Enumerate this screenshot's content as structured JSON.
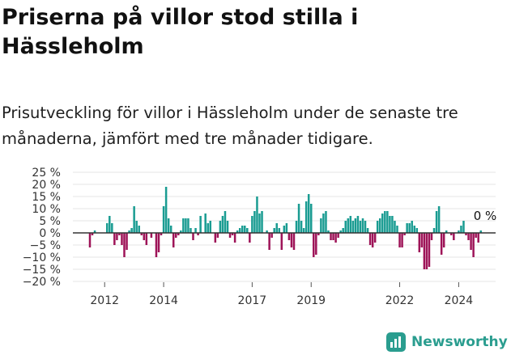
{
  "title": "Priserna på villor stod stilla i Hässleholm",
  "subtitle": "Prisutveckling för villor i Hässleholm under de senaste tre månaderna, jämfört med tre månader tidigare.",
  "brand": {
    "name": "Newsworthy",
    "logo_icon": "newsworthy-logo-icon"
  },
  "colors": {
    "positive": "#1a9c92",
    "negative": "#9e1458",
    "grid": "#e4e4e4",
    "zero": "#333333"
  },
  "chart_data": {
    "type": "bar",
    "ylim": [
      -20,
      25
    ],
    "yticks": [
      25,
      20,
      15,
      10,
      5,
      0,
      -5,
      -10,
      -15,
      -20
    ],
    "ytick_labels": [
      "25 %",
      "20 %",
      "15 %",
      "10 %",
      "5 %",
      "0 %",
      "−5 %",
      "−10 %",
      "−15 %",
      "−20 %"
    ],
    "xtick_labels": [
      {
        "label": "2012",
        "index": 6
      },
      {
        "label": "2014",
        "index": 30
      },
      {
        "label": "2017",
        "index": 66
      },
      {
        "label": "2019",
        "index": 90
      },
      {
        "label": "2022",
        "index": 126
      },
      {
        "label": "2024",
        "index": 150
      }
    ],
    "annotation": "0 %",
    "values": [
      -6,
      -1,
      1,
      0,
      0,
      0,
      0,
      4,
      7,
      4,
      -5,
      -3,
      -1,
      -5,
      -10,
      -7,
      1,
      2,
      11,
      5,
      3,
      -1,
      -3,
      -5,
      0,
      -2,
      0,
      -10,
      -8,
      -1,
      11,
      19,
      6,
      3,
      -6,
      -2,
      -1,
      1,
      6,
      6,
      6,
      2,
      -3,
      2,
      -1,
      7,
      0,
      8,
      4,
      5,
      0,
      -4,
      -2,
      5,
      7,
      9,
      5,
      -2,
      -1,
      -4,
      1,
      2,
      3,
      3,
      2,
      -4,
      7,
      9,
      15,
      8,
      9,
      0,
      1,
      -7,
      -2,
      2,
      4,
      2,
      -7,
      3,
      4,
      -3,
      -6,
      -7,
      5,
      12,
      5,
      2,
      13,
      16,
      12,
      -10,
      -9,
      -1,
      6,
      8,
      9,
      1,
      -3,
      -3,
      -4,
      -2,
      1,
      2,
      5,
      6,
      7,
      5,
      6,
      7,
      5,
      6,
      5,
      2,
      -5,
      -6,
      -4,
      5,
      6,
      8,
      9,
      9,
      7,
      7,
      5,
      3,
      -6,
      -6,
      -1,
      4,
      4,
      5,
      3,
      2,
      -8,
      -6,
      -15,
      -15,
      -14,
      -3,
      2,
      9,
      11,
      -9,
      -6,
      1,
      0,
      -1,
      -3,
      0,
      1,
      3,
      5,
      -1,
      -3,
      -7,
      -10,
      -2,
      -4,
      1,
      0
    ]
  }
}
